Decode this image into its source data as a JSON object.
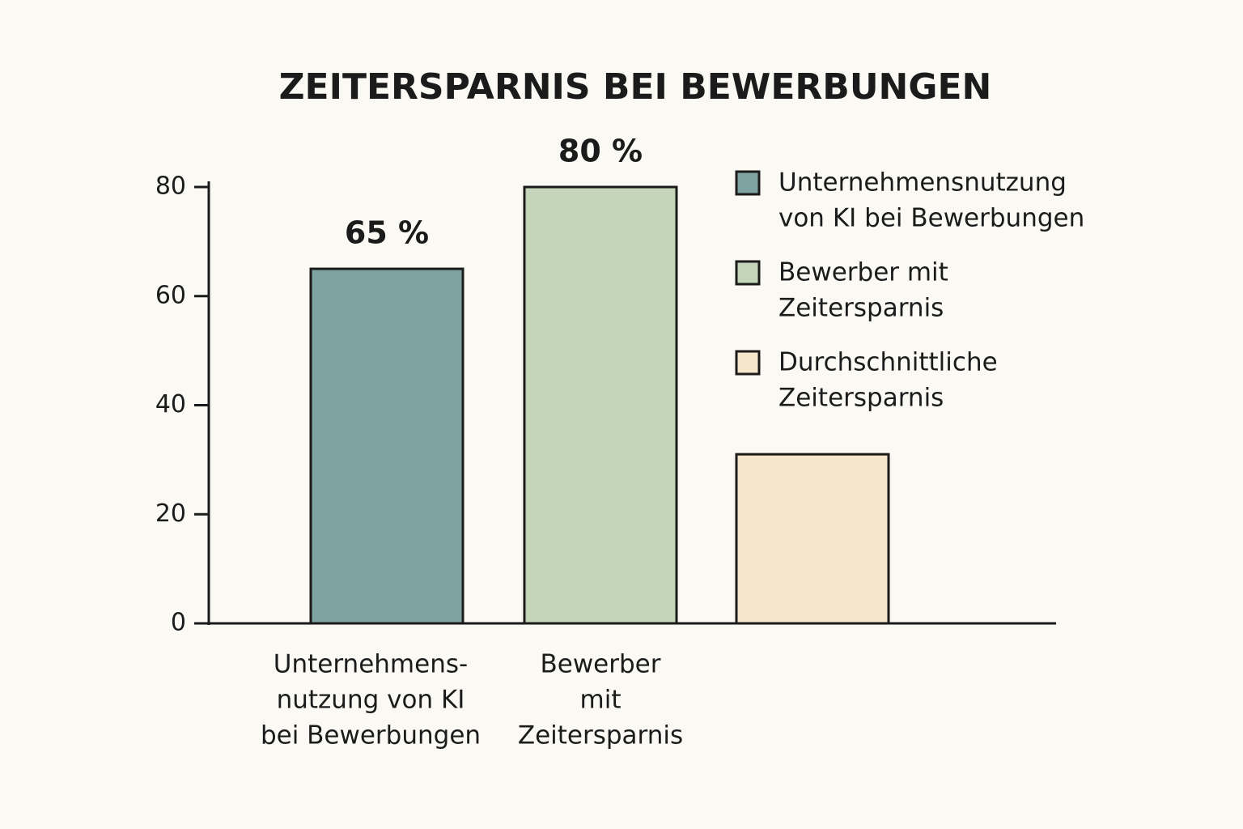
{
  "chart_data": {
    "type": "bar",
    "title": "ZEITERSPARNIS BEI BEWERBUNGEN",
    "categories": [
      [
        "Unternehmens-",
        "nutzung von KI",
        "bei Bewerbungen"
      ],
      [
        "Bewerber",
        "mit",
        "Zeitersparnis"
      ],
      null
    ],
    "values": [
      65,
      80,
      31
    ],
    "value_labels": [
      "65 %",
      "80 %",
      null
    ],
    "colors": [
      "#7ea3a0",
      "#c4d5b9",
      "#f6e6cc"
    ],
    "legend": [
      [
        "Unternehmensnutzung",
        "von KI bei Bewerbungen"
      ],
      [
        "Bewerber mit",
        "Zeitersparnis"
      ],
      [
        "Durchschnittliche",
        "Zeitersparnis"
      ]
    ],
    "ylim": [
      0,
      80
    ],
    "yticks": [
      0,
      20,
      40,
      60,
      80
    ]
  }
}
